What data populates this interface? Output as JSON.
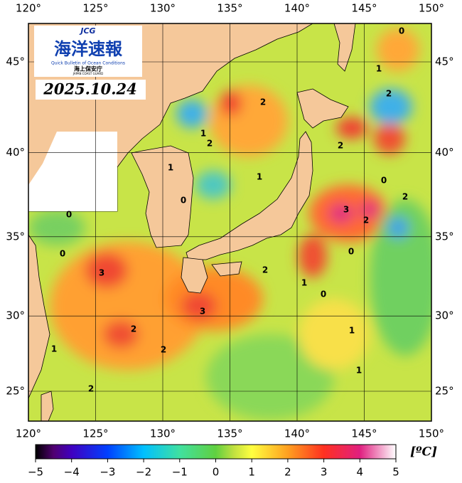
{
  "logo": {
    "jcg": "JCG",
    "title": "海洋速報",
    "subtitle": "Quick Bulletin of Ocean Conditions",
    "org": "海上保安庁",
    "org_en": "JAPAN COAST GUARD"
  },
  "date": "2025.10.24",
  "map": {
    "lonlim": [
      120,
      150
    ],
    "latlim": [
      23,
      47.5
    ],
    "lon_ticks": [
      {
        "value": 120,
        "label": "120°"
      },
      {
        "value": 125,
        "label": "125°"
      },
      {
        "value": 130,
        "label": "130°"
      },
      {
        "value": 135,
        "label": "135°"
      },
      {
        "value": 140,
        "label": "140°"
      },
      {
        "value": 145,
        "label": "145°"
      },
      {
        "value": 150,
        "label": "150°"
      }
    ],
    "lat_ticks": [
      {
        "value": 25,
        "label": "25°"
      },
      {
        "value": 30,
        "label": "30°"
      },
      {
        "value": 35,
        "label": "35°"
      },
      {
        "value": 40,
        "label": "40°"
      },
      {
        "value": 45,
        "label": "45°"
      }
    ],
    "contour_labels": [
      0,
      0,
      0,
      0,
      0,
      0,
      0,
      1,
      1,
      1,
      1,
      1,
      1,
      1,
      1,
      2,
      2,
      2,
      2,
      2,
      2,
      2,
      2,
      2,
      2,
      3,
      3,
      3
    ]
  },
  "colorbar": {
    "lim": [
      -5,
      5
    ],
    "unit": "[ºC]",
    "ticks": [
      {
        "value": -5,
        "label": "−5"
      },
      {
        "value": -4,
        "label": "−4"
      },
      {
        "value": -3,
        "label": "−3"
      },
      {
        "value": -2,
        "label": "−2"
      },
      {
        "value": -1,
        "label": "−1"
      },
      0,
      1,
      2,
      3,
      4,
      5
    ]
  }
}
